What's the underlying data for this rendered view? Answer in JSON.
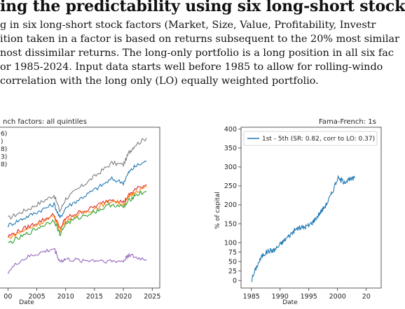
{
  "heading": "ing the predictability using six long-short stock",
  "paragraph_lines": [
    "g in six long-short stock factors (Market, Size, Value, Profitability, Investr",
    "ition taken in a factor is based on returns subsequent to the 20% most similar",
    "nost dissimilar returns. The long-only portfolio is a long position in all six fac",
    "or 1985-2024. Input data starts well before 1985 to allow for rolling-windo",
    "correlation with the long only (LO) equally weighted portfolio."
  ],
  "left_figure": {
    "title": "nch factors: all quintiles",
    "xlabel": "Date",
    "legend_fragments": [
      "6)",
      ")",
      "8)",
      "3)",
      "8)"
    ],
    "xticks": [
      "00",
      "2005",
      "2010",
      "2015",
      "2020",
      "2025"
    ],
    "colors": [
      "#7f7f7f",
      "#1f77b4",
      "#d62728",
      "#ff7f0e",
      "#2ca02c",
      "#9467bd"
    ]
  },
  "right_figure": {
    "title": "Fama-French: 1s",
    "ylabel": "% of capital",
    "xlabel": "Date",
    "legend": "1st - 5th (SR: 0.82, corr to LO: 0.37)",
    "yticks": [
      "400",
      "350",
      "300",
      "250",
      "200",
      "150",
      "100",
      "75",
      "50",
      "25",
      "0"
    ],
    "xticks": [
      "1985",
      "1990",
      "1995",
      "2000",
      "20"
    ],
    "line_color": "#1f77b4"
  },
  "chart_data": [
    {
      "type": "line",
      "title": "nch factors: all quintiles",
      "xlabel": "Date",
      "x": [
        2000,
        2002,
        2004,
        2006,
        2008,
        2009,
        2010,
        2012,
        2014,
        2016,
        2018,
        2020,
        2021,
        2022,
        2024
      ],
      "series": [
        {
          "color": "#7f7f7f",
          "values": [
            0.78,
            0.84,
            0.9,
            0.97,
            1.04,
            0.86,
            1.0,
            1.1,
            1.2,
            1.3,
            1.4,
            1.38,
            1.52,
            1.6,
            1.68
          ]
        },
        {
          "color": "#1f77b4",
          "values": [
            0.7,
            0.76,
            0.82,
            0.88,
            0.94,
            0.78,
            0.9,
            0.98,
            1.06,
            1.14,
            1.22,
            1.18,
            1.3,
            1.36,
            1.42
          ]
        },
        {
          "color": "#d62728",
          "values": [
            0.58,
            0.64,
            0.7,
            0.76,
            0.82,
            0.66,
            0.78,
            0.84,
            0.88,
            0.94,
            1.0,
            0.96,
            1.04,
            1.1,
            1.16
          ]
        },
        {
          "color": "#ff7f0e",
          "values": [
            0.56,
            0.62,
            0.68,
            0.74,
            0.8,
            0.64,
            0.76,
            0.82,
            0.86,
            0.92,
            0.98,
            0.94,
            1.02,
            1.08,
            1.13
          ]
        },
        {
          "color": "#2ca02c",
          "values": [
            0.5,
            0.56,
            0.63,
            0.7,
            0.76,
            0.6,
            0.72,
            0.78,
            0.83,
            0.88,
            0.94,
            0.9,
            0.98,
            1.04,
            1.08
          ]
        },
        {
          "color": "#9467bd",
          "values": [
            0.18,
            0.3,
            0.36,
            0.4,
            0.44,
            0.3,
            0.32,
            0.31,
            0.31,
            0.31,
            0.3,
            0.3,
            0.38,
            0.34,
            0.32
          ]
        }
      ]
    },
    {
      "type": "line",
      "title": "Fama-French: 1s",
      "xlabel": "Date",
      "ylabel": "% of capital",
      "ylim": [
        0,
        400
      ],
      "x": [
        1985,
        1986,
        1987,
        1988,
        1989,
        1990,
        1991,
        1992,
        1993,
        1994,
        1995,
        1996,
        1997,
        1998,
        1999,
        2000,
        2001,
        2002,
        2003
      ],
      "series": [
        {
          "name": "1st - 5th (SR: 0.82, corr to LO: 0.37)",
          "values": [
            0,
            40,
            68,
            78,
            80,
            95,
            110,
            125,
            138,
            140,
            145,
            160,
            180,
            200,
            230,
            270,
            262,
            265,
            270
          ]
        }
      ]
    }
  ]
}
